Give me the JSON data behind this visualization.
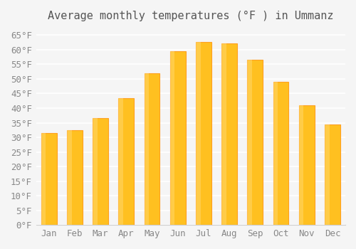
{
  "title": "Average monthly temperatures (°F ) in Ummanz",
  "months": [
    "Jan",
    "Feb",
    "Mar",
    "Apr",
    "May",
    "Jun",
    "Jul",
    "Aug",
    "Sep",
    "Oct",
    "Nov",
    "Dec"
  ],
  "values": [
    31.5,
    32.5,
    36.5,
    43.5,
    52.0,
    59.5,
    62.5,
    62.0,
    56.5,
    49.0,
    41.0,
    34.5
  ],
  "bar_color_main": "#FFC020",
  "bar_color_edge": "#FFA020",
  "background_color": "#F5F5F5",
  "ylim": [
    0,
    67
  ],
  "ytick_step": 5,
  "title_fontsize": 11,
  "tick_fontsize": 9,
  "grid_color": "#FFFFFF",
  "spine_color": "#CCCCCC"
}
